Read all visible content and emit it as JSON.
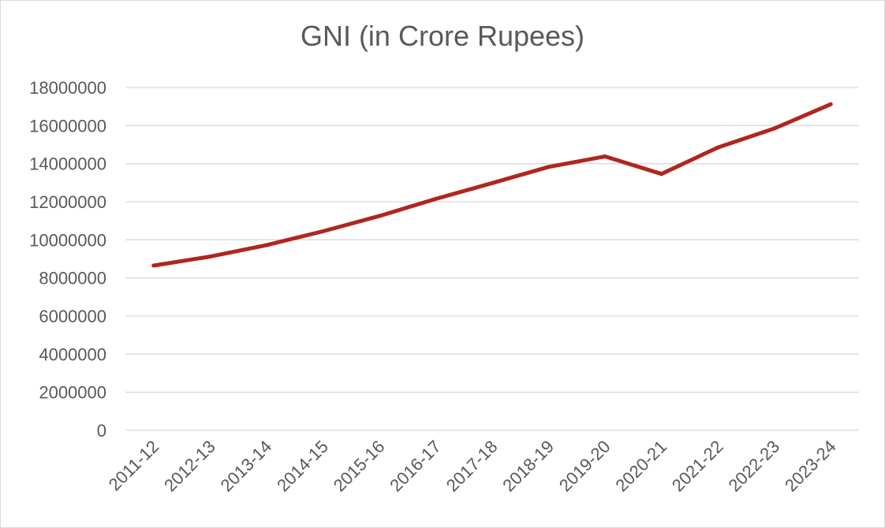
{
  "chart_data": {
    "type": "line",
    "title": "GNI (in Crore Rupees)",
    "xlabel": "",
    "ylabel": "",
    "categories": [
      "2011-12",
      "2012-13",
      "2013-14",
      "2014-15",
      "2015-16",
      "2016-17",
      "2017-18",
      "2018-19",
      "2019-20",
      "2020-21",
      "2021-22",
      "2022-23",
      "2023-24"
    ],
    "series": [
      {
        "values": [
          8650000,
          9120000,
          9720000,
          10450000,
          11250000,
          12150000,
          12980000,
          13830000,
          14380000,
          13460000,
          14850000,
          15850000,
          17120000
        ]
      }
    ],
    "yticks": [
      "0",
      "2000000",
      "4000000",
      "6000000",
      "8000000",
      "10000000",
      "12000000",
      "14000000",
      "16000000",
      "18000000"
    ],
    "ylim": [
      0,
      18000000
    ],
    "grid": true,
    "legend": "none",
    "colors": {
      "line": "#b0261f",
      "grid": "#d9d9d9",
      "text": "#595959"
    }
  }
}
